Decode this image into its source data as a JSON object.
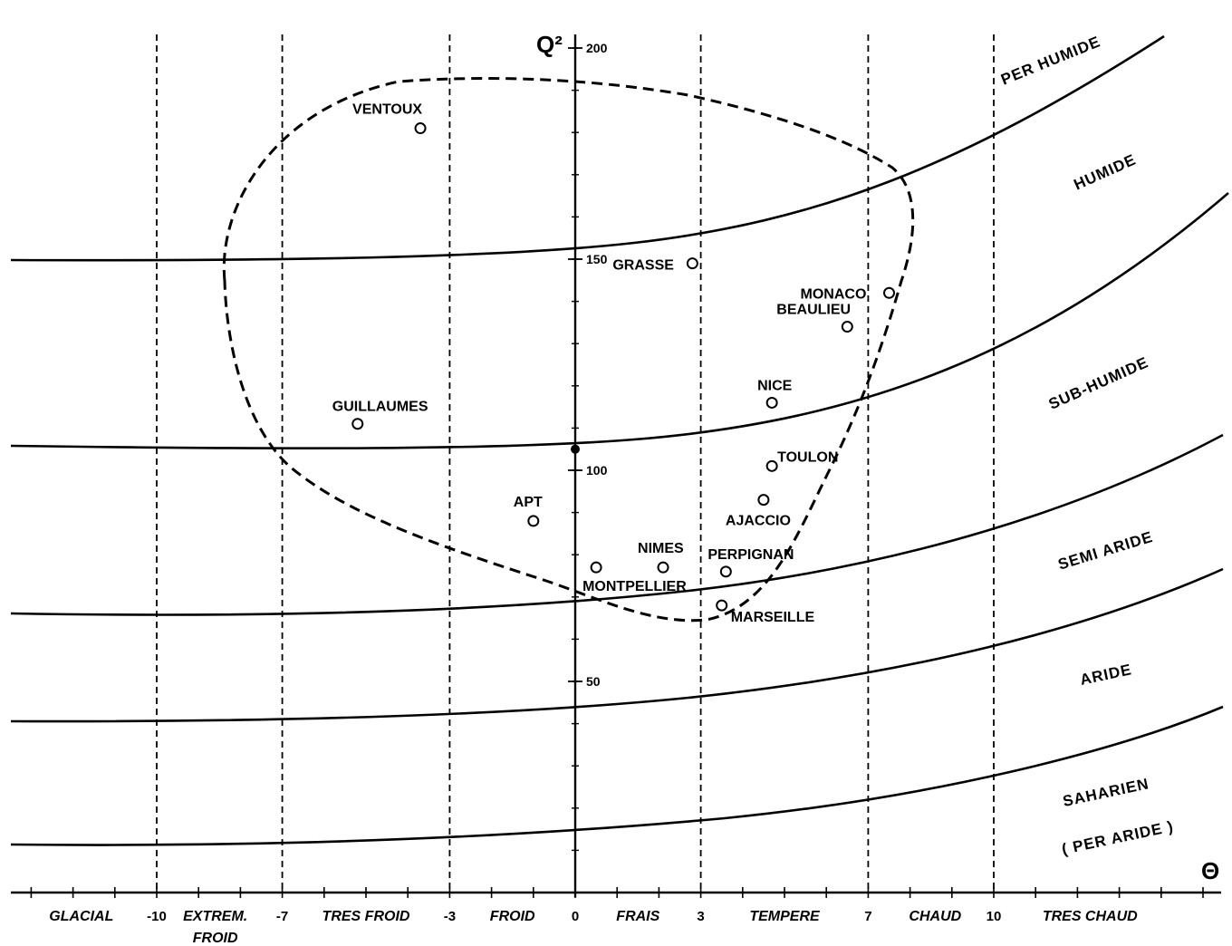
{
  "chart_data": {
    "type": "scatter",
    "title": "",
    "xlabel": "Θ",
    "ylabel": "Q²",
    "xlim": [
      -13.6,
      15.7
    ],
    "ylim": [
      0,
      200
    ],
    "x_ticks": [
      {
        "value": -10,
        "label": "-10"
      },
      {
        "value": -7,
        "label": "-7"
      },
      {
        "value": -3,
        "label": "-3"
      },
      {
        "value": 0,
        "label": "0"
      },
      {
        "value": 3,
        "label": "3"
      },
      {
        "value": 7,
        "label": "7"
      },
      {
        "value": 10,
        "label": "10"
      }
    ],
    "y_ticks": [
      {
        "value": 50,
        "label": "50"
      },
      {
        "value": 100,
        "label": "100"
      },
      {
        "value": 150,
        "label": "150"
      },
      {
        "value": 200,
        "label": "200"
      }
    ],
    "thermal_zones": [
      {
        "label": "GLACIAL",
        "x": -11.8
      },
      {
        "label": "EXTREM.",
        "label2": "FROID",
        "x": -8.6
      },
      {
        "label": "TRES FROID",
        "x": -5.0
      },
      {
        "label": "FROID",
        "x": -1.5
      },
      {
        "label": "FRAIS",
        "x": 1.5
      },
      {
        "label": "TEMPERE",
        "x": 5.0
      },
      {
        "label": "CHAUD",
        "x": 8.6
      },
      {
        "label": "TRES CHAUD",
        "x": 12.3
      }
    ],
    "vertical_dividers": [
      -10,
      -7,
      -3,
      3,
      7,
      10
    ],
    "bioclimatic_zones": [
      {
        "label": "PER HUMIDE"
      },
      {
        "label": "HUMIDE"
      },
      {
        "label": "SUB-HUMIDE"
      },
      {
        "label": "SEMI ARIDE"
      },
      {
        "label": "ARIDE"
      },
      {
        "label": "SAHARIEN"
      },
      {
        "label": "( PER ARIDE )"
      }
    ],
    "stations": [
      {
        "name": "VENTOUX",
        "x": -3.7,
        "y": 181
      },
      {
        "name": "MONACO",
        "x": 7.5,
        "y": 142
      },
      {
        "name": "GRASSE",
        "x": 2.8,
        "y": 149
      },
      {
        "name": "BEAULIEU",
        "x": 6.5,
        "y": 134
      },
      {
        "name": "NICE",
        "x": 4.7,
        "y": 116
      },
      {
        "name": "GUILLAUMES",
        "x": -5.2,
        "y": 111
      },
      {
        "name": "TOULON",
        "x": 4.7,
        "y": 101
      },
      {
        "name": "APT",
        "x": -1.0,
        "y": 88
      },
      {
        "name": "AJACCIO",
        "x": 4.5,
        "y": 93
      },
      {
        "name": "NIMES",
        "x": 2.1,
        "y": 77
      },
      {
        "name": "PERPIGNAN",
        "x": 3.6,
        "y": 76
      },
      {
        "name": "MONTPELLIER",
        "x": 0.5,
        "y": 77
      },
      {
        "name": "MARSEILLE",
        "x": 3.5,
        "y": 68
      }
    ]
  }
}
